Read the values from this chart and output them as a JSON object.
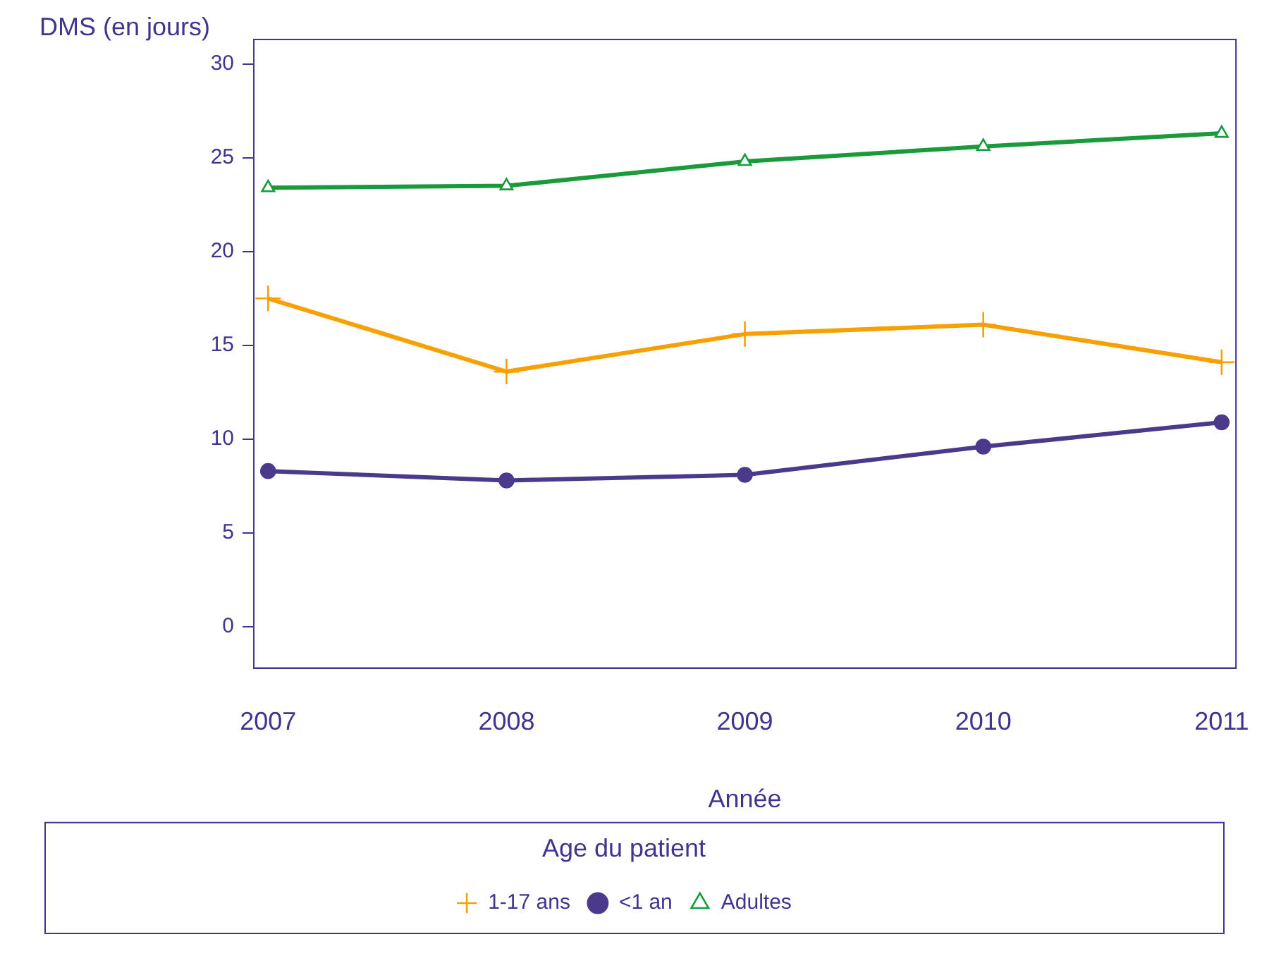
{
  "chart_data": {
    "type": "line",
    "ylabel": "DMS (en jours)",
    "xlabel": "Année",
    "legend_title": "Age du patient",
    "legend": "bottom",
    "grid": false,
    "line_style": "solid",
    "x": [
      2007,
      2008,
      2009,
      2010,
      2011
    ],
    "xlim": [
      2006.94,
      2011.06
    ],
    "xticks": [
      2007,
      2008,
      2009,
      2010,
      2011
    ],
    "ylim": [
      -2.2,
      31.3
    ],
    "yticks": [
      0,
      5,
      10,
      15,
      20,
      25,
      30
    ],
    "series": [
      {
        "name": "1-17 ans",
        "color": "#f7a000",
        "marker": "cross",
        "values": [
          17.5,
          13.6,
          15.6,
          16.1,
          14.1
        ]
      },
      {
        "name": "<1 an",
        "color": "#4b3a8c",
        "marker": "circle",
        "values": [
          8.3,
          7.8,
          8.1,
          9.6,
          10.9
        ]
      },
      {
        "name": "Adultes",
        "color": "#1a9a3a",
        "marker": "triangle",
        "values": [
          23.4,
          23.5,
          24.8,
          25.6,
          26.3
        ]
      }
    ]
  }
}
